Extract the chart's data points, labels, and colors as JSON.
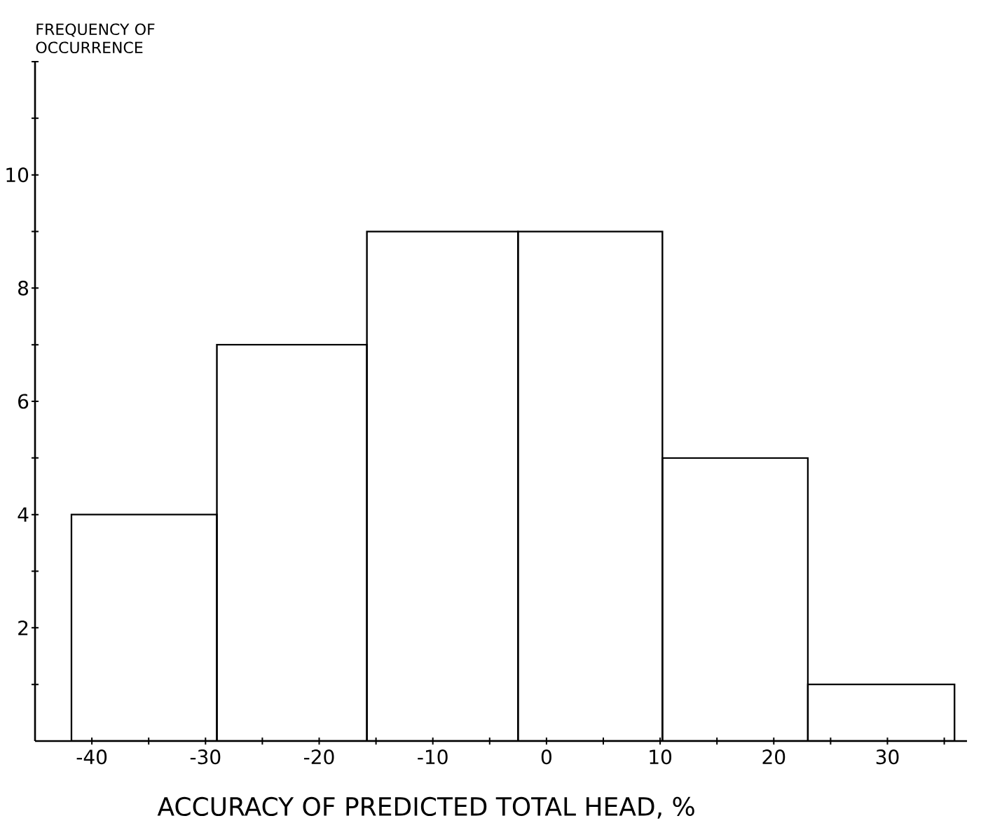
{
  "chart_data": {
    "type": "histogram",
    "xlabel": "ACCURACY OF PREDICTED TOTAL HEAD, %",
    "ylabel": "FREQUENCY OF OCCURRENCE",
    "bins": [
      -41.8,
      -29,
      -15.8,
      -2.5,
      10.2,
      23,
      35.9
    ],
    "values": [
      4,
      7,
      9,
      9,
      5,
      1
    ],
    "color": "#000000",
    "xlim": [
      -45,
      37
    ],
    "ylim": [
      0,
      12
    ],
    "xticks": [
      -40,
      {
        "value": -35,
        "label": null
      },
      -30,
      {
        "value": -25,
        "label": null
      },
      -20,
      {
        "value": -15,
        "label": null
      },
      -10,
      {
        "value": -5,
        "label": null
      },
      0,
      {
        "value": 5,
        "label": null
      },
      10,
      {
        "value": 15,
        "label": null
      },
      20,
      {
        "value": 25,
        "label": null
      },
      30,
      {
        "value": 35,
        "label": null
      }
    ],
    "yticks": [
      {
        "value": 1,
        "label": null
      },
      2,
      {
        "value": 3,
        "label": null
      },
      4,
      {
        "value": 5,
        "label": null
      },
      6,
      {
        "value": 7,
        "label": null
      },
      8,
      {
        "value": 9,
        "label": null
      },
      10,
      {
        "value": 11,
        "label": null
      },
      {
        "value": 12,
        "label": null
      }
    ]
  }
}
